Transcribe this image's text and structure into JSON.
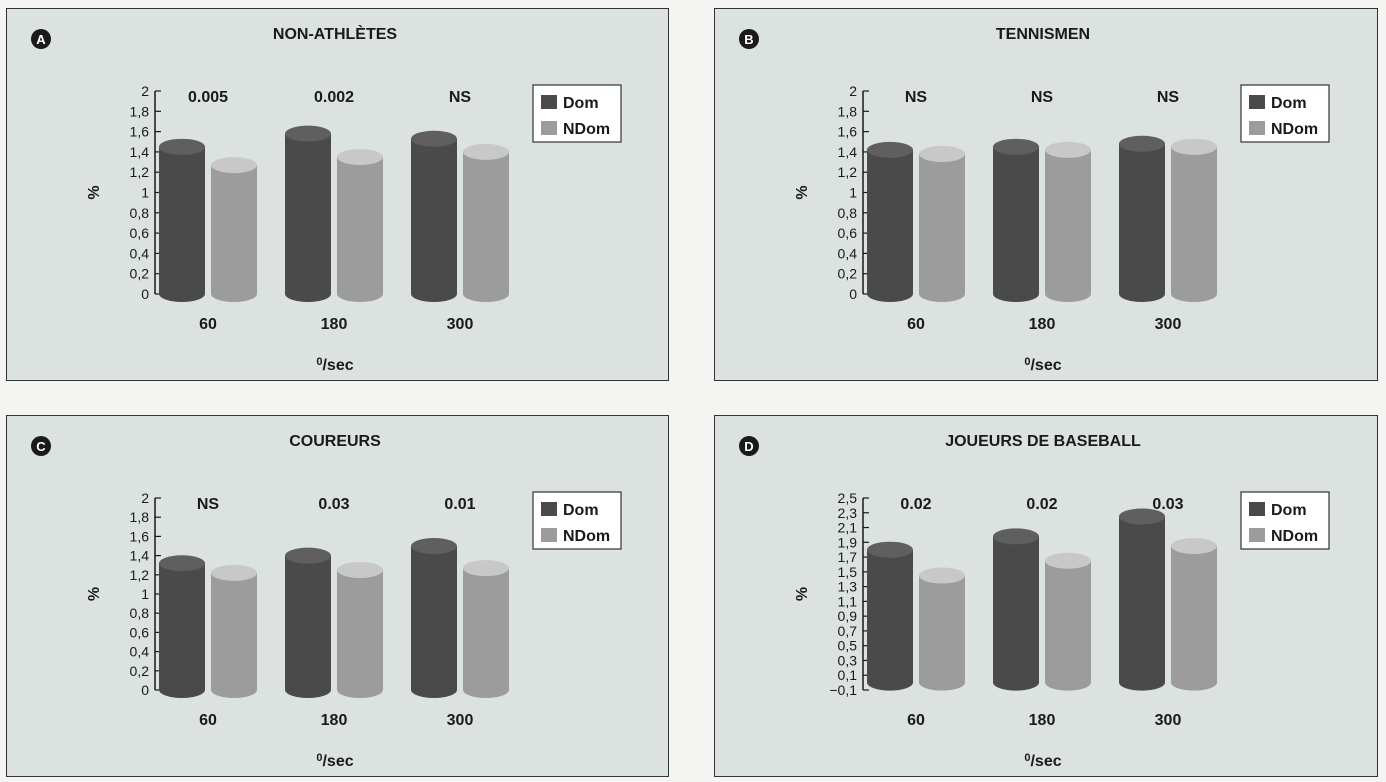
{
  "colors": {
    "dom": "#4a4a4a",
    "ndom": "#9c9c9c",
    "panel_bg": "#dbe2e0"
  },
  "chart_data": [
    {
      "type": "bar",
      "letter": "A",
      "title": "NON-ATHLÈTES",
      "categories": [
        "60",
        "180",
        "300"
      ],
      "series": [
        {
          "name": "Dom",
          "values": [
            1.45,
            1.58,
            1.53
          ]
        },
        {
          "name": "NDom",
          "values": [
            1.27,
            1.35,
            1.4
          ]
        }
      ],
      "annotations": [
        "0.005",
        "0.002",
        "NS"
      ],
      "xlabel_pre": "0",
      "xlabel": "/sec",
      "ylabel": "%",
      "ylim": [
        0,
        2
      ],
      "yticks": [
        "0",
        "0,2",
        "0,4",
        "0,6",
        "0,8",
        "1",
        "1,2",
        "1,4",
        "1,6",
        "1,8",
        "2"
      ],
      "legend_position": "top-right"
    },
    {
      "type": "bar",
      "letter": "B",
      "title": "TENNISMEN",
      "categories": [
        "60",
        "180",
        "300"
      ],
      "series": [
        {
          "name": "Dom",
          "values": [
            1.42,
            1.45,
            1.48
          ]
        },
        {
          "name": "NDom",
          "values": [
            1.38,
            1.42,
            1.45
          ]
        }
      ],
      "annotations": [
        "NS",
        "NS",
        "NS"
      ],
      "xlabel_pre": "0",
      "xlabel": "/sec",
      "ylabel": "%",
      "ylim": [
        0,
        2
      ],
      "yticks": [
        "0",
        "0,2",
        "0,4",
        "0,6",
        "0,8",
        "1",
        "1,2",
        "1,4",
        "1,6",
        "1,8",
        "2"
      ],
      "legend_position": "top-right"
    },
    {
      "type": "bar",
      "letter": "C",
      "title": "COUREURS",
      "categories": [
        "60",
        "180",
        "300"
      ],
      "series": [
        {
          "name": "Dom",
          "values": [
            1.32,
            1.4,
            1.5
          ]
        },
        {
          "name": "NDom",
          "values": [
            1.22,
            1.25,
            1.27
          ]
        }
      ],
      "annotations": [
        "NS",
        "0.03",
        "0.01"
      ],
      "xlabel_pre": "0",
      "xlabel": "/sec",
      "ylabel": "%",
      "ylim": [
        0,
        2
      ],
      "yticks": [
        "0",
        "0,2",
        "0,4",
        "0,6",
        "0,8",
        "1",
        "1,2",
        "1,4",
        "1,6",
        "1,8",
        "2"
      ],
      "legend_position": "top-right"
    },
    {
      "type": "bar",
      "letter": "D",
      "title": "JOUEURS DE BASEBALL",
      "categories": [
        "60",
        "180",
        "300"
      ],
      "series": [
        {
          "name": "Dom",
          "values": [
            1.8,
            1.98,
            2.25
          ]
        },
        {
          "name": "NDom",
          "values": [
            1.45,
            1.65,
            1.85
          ]
        }
      ],
      "annotations": [
        "0.02",
        "0.02",
        "0.03"
      ],
      "xlabel_pre": "0",
      "xlabel": "/sec",
      "ylabel": "%",
      "ylim": [
        -0.1,
        2.5
      ],
      "yticks": [
        "−0,1",
        "0,1",
        "0,3",
        "0,5",
        "0,7",
        "0,9",
        "1,1",
        "1,3",
        "1,5",
        "1,7",
        "1,9",
        "2,1",
        "2,3",
        "2,5"
      ],
      "legend_position": "top-right"
    }
  ]
}
